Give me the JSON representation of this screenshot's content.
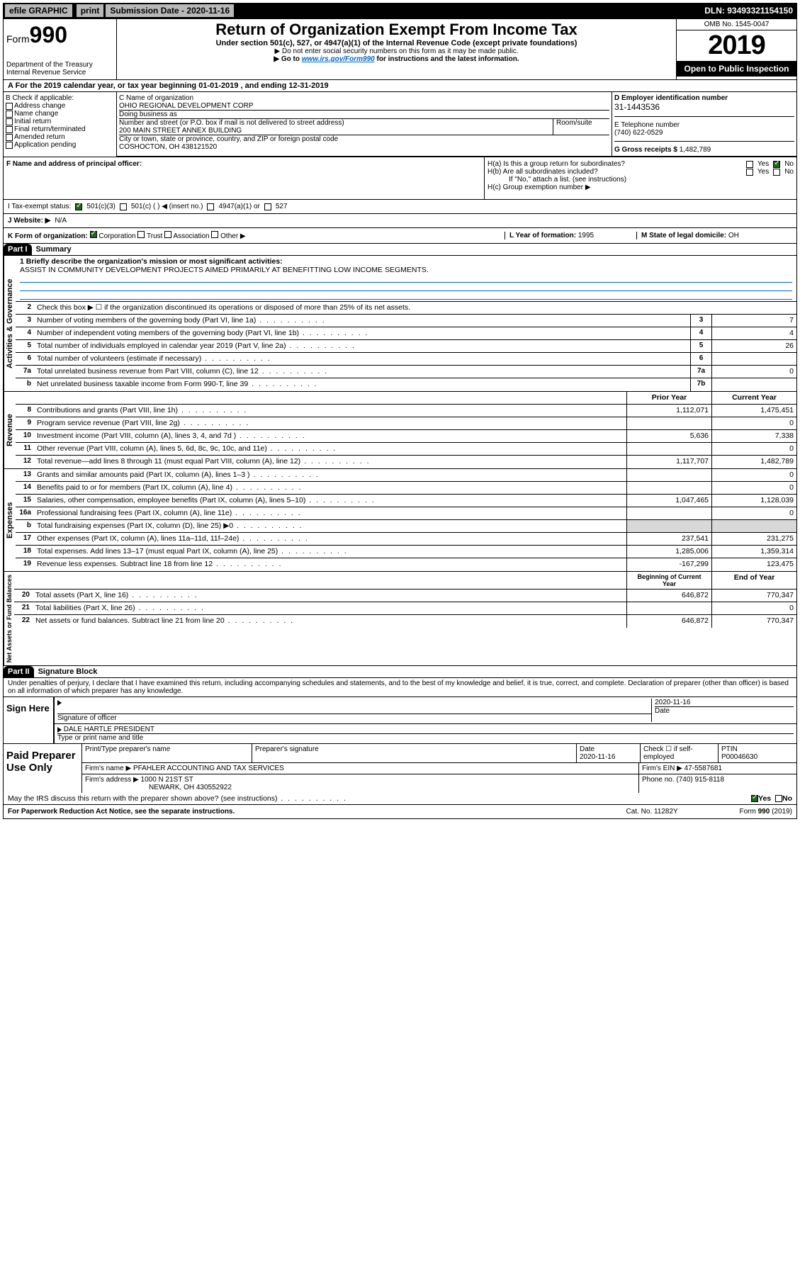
{
  "topbar": {
    "efile": "efile GRAPHIC",
    "print": "print",
    "subdate_label": "Submission Date - ",
    "subdate": "2020-11-16",
    "dln_label": "DLN: ",
    "dln": "93493321154150"
  },
  "header": {
    "form_prefix": "Form",
    "form_number": "990",
    "dept1": "Department of the Treasury",
    "dept2": "Internal Revenue Service",
    "title": "Return of Organization Exempt From Income Tax",
    "subtitle": "Under section 501(c), 527, or 4947(a)(1) of the Internal Revenue Code (except private foundations)",
    "line1": "▶ Do not enter social security numbers on this form as it may be made public.",
    "line2_pre": "▶ Go to ",
    "line2_link": "www.irs.gov/Form990",
    "line2_post": " for instructions and the latest information.",
    "omb": "OMB No. 1545-0047",
    "year": "2019",
    "open": "Open to Public Inspection"
  },
  "period": {
    "text": "A  For the 2019 calendar year, or tax year beginning 01-01-2019    , and ending 12-31-2019"
  },
  "boxB": {
    "label": "B Check if applicable:",
    "items": [
      "Address change",
      "Name change",
      "Initial return",
      "Final return/terminated",
      "Amended return",
      "Application pending"
    ]
  },
  "boxC": {
    "label_name": "C Name of organization",
    "org_name": "OHIO REGIONAL DEVELOPMENT CORP",
    "dba_label": "Doing business as",
    "addr_label": "Number and street (or P.O. box if mail is not delivered to street address)",
    "room_label": "Room/suite",
    "addr": "200 MAIN STREET ANNEX BUILDING",
    "city_label": "City or town, state or province, country, and ZIP or foreign postal code",
    "city": "COSHOCTON, OH  438121520"
  },
  "boxD": {
    "label": "D Employer identification number",
    "ein": "31-1443536"
  },
  "boxE": {
    "label": "E Telephone number",
    "phone": "(740) 622-0529"
  },
  "boxG": {
    "label": "G Gross receipts $ ",
    "val": "1,482,789"
  },
  "boxF": {
    "label": "F Name and address of principal officer:"
  },
  "boxH": {
    "ha": "H(a)  Is this a group return for subordinates?",
    "hb": "H(b)  Are all subordinates included?",
    "hb_note": "If \"No,\" attach a list. (see instructions)",
    "hc": "H(c)  Group exemption number ▶",
    "yes": "Yes",
    "no": "No"
  },
  "boxI": {
    "label": "I   Tax-exempt status:",
    "c3": "501(c)(3)",
    "c": "501(c) (  ) ◀ (insert no.)",
    "a1": "4947(a)(1) or",
    "s527": "527"
  },
  "boxJ": {
    "label": "J   Website: ▶",
    "val": "N/A"
  },
  "boxK": {
    "label": "K Form of organization:",
    "corp": "Corporation",
    "trust": "Trust",
    "assoc": "Association",
    "other": "Other ▶"
  },
  "boxL": {
    "label": "L Year of formation: ",
    "val": "1995"
  },
  "boxM": {
    "label": "M State of legal domicile: ",
    "val": "OH"
  },
  "part1": {
    "label": "Part I",
    "title": "Summary"
  },
  "summary": {
    "q1_label": "1  Briefly describe the organization's mission or most significant activities:",
    "q1_val": "ASSIST IN COMMUNITY DEVELOPMENT PROJECTS AIMED PRIMARILY AT BENEFITTING LOW INCOME SEGMENTS.",
    "q2": "Check this box ▶ ☐  if the organization discontinued its operations or disposed of more than 25% of its net assets.",
    "lines_gov": [
      {
        "n": "3",
        "t": "Number of voting members of the governing body (Part VI, line 1a)",
        "box": "3",
        "v": "7"
      },
      {
        "n": "4",
        "t": "Number of independent voting members of the governing body (Part VI, line 1b)",
        "box": "4",
        "v": "4"
      },
      {
        "n": "5",
        "t": "Total number of individuals employed in calendar year 2019 (Part V, line 2a)",
        "box": "5",
        "v": "26"
      },
      {
        "n": "6",
        "t": "Total number of volunteers (estimate if necessary)",
        "box": "6",
        "v": ""
      },
      {
        "n": "7a",
        "t": "Total unrelated business revenue from Part VIII, column (C), line 12",
        "box": "7a",
        "v": "0"
      },
      {
        "n": "b",
        "t": "Net unrelated business taxable income from Form 990-T, line 39",
        "box": "7b",
        "v": ""
      }
    ],
    "col_prior": "Prior Year",
    "col_current": "Current Year",
    "col_begin": "Beginning of Current Year",
    "col_end": "End of Year",
    "lines_rev": [
      {
        "n": "8",
        "t": "Contributions and grants (Part VIII, line 1h)",
        "py": "1,112,071",
        "cy": "1,475,451"
      },
      {
        "n": "9",
        "t": "Program service revenue (Part VIII, line 2g)",
        "py": "",
        "cy": "0"
      },
      {
        "n": "10",
        "t": "Investment income (Part VIII, column (A), lines 3, 4, and 7d )",
        "py": "5,636",
        "cy": "7,338"
      },
      {
        "n": "11",
        "t": "Other revenue (Part VIII, column (A), lines 5, 6d, 8c, 9c, 10c, and 11e)",
        "py": "",
        "cy": "0"
      },
      {
        "n": "12",
        "t": "Total revenue—add lines 8 through 11 (must equal Part VIII, column (A), line 12)",
        "py": "1,117,707",
        "cy": "1,482,789"
      }
    ],
    "lines_exp": [
      {
        "n": "13",
        "t": "Grants and similar amounts paid (Part IX, column (A), lines 1–3 )",
        "py": "",
        "cy": "0"
      },
      {
        "n": "14",
        "t": "Benefits paid to or for members (Part IX, column (A), line 4)",
        "py": "",
        "cy": "0"
      },
      {
        "n": "15",
        "t": "Salaries, other compensation, employee benefits (Part IX, column (A), lines 5–10)",
        "py": "1,047,465",
        "cy": "1,128,039"
      },
      {
        "n": "16a",
        "t": "Professional fundraising fees (Part IX, column (A), line 11e)",
        "py": "",
        "cy": "0"
      },
      {
        "n": "b",
        "t": "Total fundraising expenses (Part IX, column (D), line 25) ▶0",
        "py": "GRAY",
        "cy": "GRAY"
      },
      {
        "n": "17",
        "t": "Other expenses (Part IX, column (A), lines 11a–11d, 11f–24e)",
        "py": "237,541",
        "cy": "231,275"
      },
      {
        "n": "18",
        "t": "Total expenses. Add lines 13–17 (must equal Part IX, column (A), line 25)",
        "py": "1,285,006",
        "cy": "1,359,314"
      },
      {
        "n": "19",
        "t": "Revenue less expenses. Subtract line 18 from line 12",
        "py": "-167,299",
        "cy": "123,475"
      }
    ],
    "lines_net": [
      {
        "n": "20",
        "t": "Total assets (Part X, line 16)",
        "py": "646,872",
        "cy": "770,347"
      },
      {
        "n": "21",
        "t": "Total liabilities (Part X, line 26)",
        "py": "",
        "cy": "0"
      },
      {
        "n": "22",
        "t": "Net assets or fund balances. Subtract line 21 from line 20",
        "py": "646,872",
        "cy": "770,347"
      }
    ]
  },
  "section_labels": {
    "gov": "Activities & Governance",
    "rev": "Revenue",
    "exp": "Expenses",
    "net": "Net Assets or Fund Balances"
  },
  "part2": {
    "label": "Part II",
    "title": "Signature Block",
    "perjury": "Under penalties of perjury, I declare that I have examined this return, including accompanying schedules and statements, and to the best of my knowledge and belief, it is true, correct, and complete. Declaration of preparer (other than officer) is based on all information of which preparer has any knowledge."
  },
  "sign": {
    "here": "Sign Here",
    "sig_officer": "Signature of officer",
    "date_label": "Date",
    "date": "2020-11-16",
    "name": "DALE HARTLE PRESIDENT",
    "name_label": "Type or print name and title"
  },
  "preparer": {
    "label": "Paid Preparer Use Only",
    "h1": "Print/Type preparer's name",
    "h2": "Preparer's signature",
    "h3": "Date",
    "h4": "Check ☐ if self-employed",
    "h5": "PTIN",
    "date": "2020-11-16",
    "ptin": "P00046630",
    "firm_label": "Firm's name    ▶",
    "firm": "PFAHLER ACCOUNTING AND TAX SERVICES",
    "ein_label": "Firm's EIN ▶ ",
    "ein": "47-5587681",
    "addr_label": "Firm's address ▶",
    "addr1": "1000 N 21ST ST",
    "addr2": "NEWARK, OH  430552922",
    "phone_label": "Phone no. ",
    "phone": "(740) 915-8118"
  },
  "discuss": {
    "text": "May the IRS discuss this return with the preparer shown above? (see instructions)",
    "yes": "Yes",
    "no": "No"
  },
  "footer": {
    "left": "For Paperwork Reduction Act Notice, see the separate instructions.",
    "mid": "Cat. No. 11282Y",
    "right": "Form 990 (2019)"
  }
}
